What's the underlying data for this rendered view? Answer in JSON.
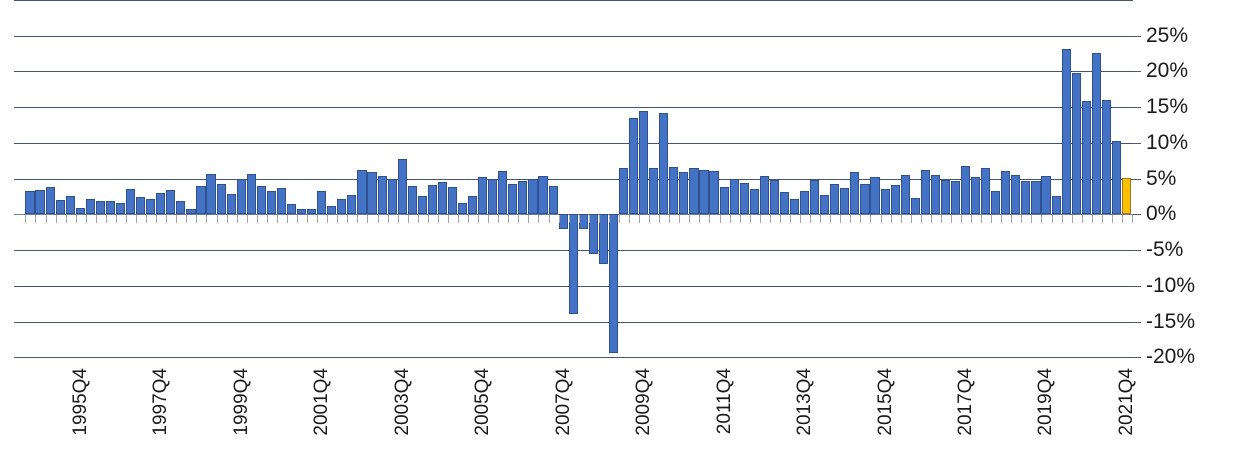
{
  "chart_data": {
    "type": "bar",
    "title": "",
    "xlabel": "",
    "ylabel": "",
    "legend": "none",
    "grid": "horizontal",
    "y_axis_side": "right",
    "ylim": [
      -20,
      30
    ],
    "y_tick_labels": [
      "25%",
      "20%",
      "15%",
      "10%",
      "5%",
      "0%",
      "-5%",
      "-10%",
      "-15%",
      "-20%"
    ],
    "y_tick_values": [
      25,
      20,
      15,
      10,
      5,
      0,
      -5,
      -10,
      -15,
      -20
    ],
    "gridline_values": [
      30,
      25,
      20,
      15,
      10,
      5,
      0,
      -5,
      -10,
      -15,
      -20
    ],
    "quarters_start": "1994Q3",
    "x_tick_labels": [
      "1995Q4",
      "1997Q4",
      "1999Q4",
      "2001Q4",
      "2003Q4",
      "2005Q4",
      "2007Q4",
      "2009Q4",
      "2011Q4",
      "2013Q4",
      "2015Q4",
      "2017Q4",
      "2019Q4",
      "2021Q4"
    ],
    "x_label_indices": [
      5,
      13,
      21,
      29,
      37,
      45,
      53,
      61,
      69,
      77,
      85,
      93,
      101,
      109
    ],
    "values": [
      3.3,
      3.4,
      3.8,
      2.0,
      2.6,
      0.9,
      2.1,
      1.9,
      1.9,
      1.6,
      3.5,
      2.4,
      2.2,
      3.0,
      3.4,
      1.8,
      0.8,
      4.0,
      5.6,
      4.2,
      2.9,
      4.9,
      5.7,
      4.0,
      3.2,
      3.7,
      1.5,
      0.7,
      0.7,
      3.2,
      1.1,
      2.2,
      2.7,
      6.2,
      5.9,
      5.4,
      5.0,
      7.8,
      4.0,
      2.5,
      4.1,
      4.5,
      3.8,
      1.6,
      2.5,
      5.2,
      4.9,
      6.1,
      4.3,
      4.6,
      5.0,
      5.4,
      4.0,
      -2.0,
      -14.0,
      -2.0,
      -5.6,
      -7.0,
      -19.4,
      6.5,
      13.5,
      14.5,
      6.5,
      14.2,
      6.6,
      5.9,
      6.5,
      6.2,
      6.0,
      3.8,
      4.9,
      4.4,
      3.6,
      5.3,
      4.8,
      3.1,
      2.2,
      3.2,
      4.8,
      2.7,
      4.3,
      3.7,
      5.9,
      4.2,
      5.2,
      3.6,
      4.1,
      5.5,
      2.3,
      6.2,
      5.5,
      4.8,
      4.6,
      6.7,
      5.2,
      6.5,
      3.3,
      6.0,
      5.5,
      4.7,
      4.7,
      5.3,
      2.5,
      23.1,
      19.7,
      15.9,
      22.5,
      16.0,
      10.3,
      5.1
    ],
    "highlight_last_bar": true,
    "colors": {
      "bar_fill": "#4472C4",
      "bar_border": "#2F528F",
      "last_bar_fill": "#FFC000",
      "last_bar_border": "#9a7a1c",
      "gridline": "#44546A",
      "axis_tick": "#A6A6A6",
      "text": "#1a1a1a"
    }
  }
}
